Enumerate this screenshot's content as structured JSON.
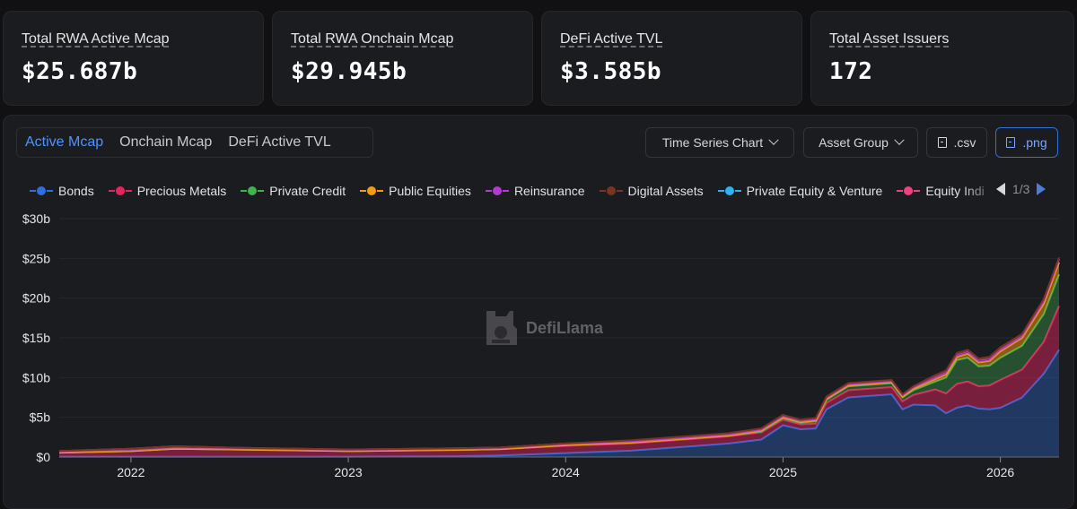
{
  "stats": [
    {
      "label": "Total RWA Active Mcap",
      "value": "$25.687b"
    },
    {
      "label": "Total RWA Onchain Mcap",
      "value": "$29.945b"
    },
    {
      "label": "DeFi Active TVL",
      "value": "$3.585b"
    },
    {
      "label": "Total Asset Issuers",
      "value": "172"
    }
  ],
  "tabs": [
    "Active Mcap",
    "Onchain Mcap",
    "DeFi Active TVL"
  ],
  "active_tab": "Active Mcap",
  "controls": {
    "chart_type": "Time Series Chart",
    "grouping": "Asset Group",
    "csv": ".csv",
    "png": ".png"
  },
  "legend": [
    {
      "name": "Bonds",
      "color": "#2f6fde"
    },
    {
      "name": "Precious Metals",
      "color": "#e8245f"
    },
    {
      "name": "Private Credit",
      "color": "#3fb34f"
    },
    {
      "name": "Public Equities",
      "color": "#f39c12"
    },
    {
      "name": "Reinsurance",
      "color": "#b23ccf"
    },
    {
      "name": "Digital Assets",
      "color": "#7a3520"
    },
    {
      "name": "Private Equity & Venture",
      "color": "#2fb2f0"
    },
    {
      "name": "Equity Indi",
      "color": "#f0407d"
    }
  ],
  "legend_pager": "1/3",
  "watermark": "DefiLlama",
  "chart_data": {
    "type": "area",
    "stacked": true,
    "ylim": [
      0,
      30
    ],
    "yticks": [
      "$0",
      "$5b",
      "$10b",
      "$15b",
      "$20b",
      "$25b",
      "$30b"
    ],
    "xticks": [
      "2022",
      "2023",
      "2024",
      "2025",
      "2026"
    ],
    "x": [
      2021.67,
      2022.0,
      2022.2,
      2022.5,
      2023.0,
      2023.5,
      2023.7,
      2024.0,
      2024.3,
      2024.5,
      2024.75,
      2024.9,
      2025.0,
      2025.08,
      2025.15,
      2025.2,
      2025.3,
      2025.5,
      2025.55,
      2025.6,
      2025.7,
      2025.75,
      2025.8,
      2025.85,
      2025.9,
      2025.95,
      2026.0,
      2026.1,
      2026.2,
      2026.27
    ],
    "series": [
      {
        "name": "Bonds",
        "values": [
          0.05,
          0.05,
          0.05,
          0.05,
          0.05,
          0.1,
          0.2,
          0.5,
          0.8,
          1.2,
          1.7,
          2.2,
          4.0,
          3.5,
          3.6,
          6.0,
          7.5,
          7.9,
          6.0,
          6.6,
          6.5,
          5.5,
          6.2,
          6.5,
          6.1,
          6.0,
          6.2,
          7.5,
          10.5,
          13.5
        ]
      },
      {
        "name": "Precious Metals",
        "values": [
          0.5,
          0.7,
          1.0,
          0.9,
          0.7,
          0.8,
          0.8,
          0.9,
          0.9,
          0.9,
          0.9,
          0.9,
          0.7,
          0.6,
          0.6,
          0.8,
          0.9,
          0.9,
          1.0,
          1.2,
          2.0,
          2.5,
          3.0,
          3.0,
          2.8,
          3.0,
          3.5,
          3.5,
          4.0,
          5.5
        ]
      },
      {
        "name": "Private Credit",
        "values": [
          0.0,
          0.0,
          0.0,
          0.0,
          0.0,
          0.0,
          0.0,
          0.1,
          0.1,
          0.1,
          0.1,
          0.1,
          0.2,
          0.2,
          0.3,
          0.4,
          0.5,
          0.5,
          0.5,
          0.6,
          1.0,
          2.0,
          3.0,
          3.0,
          2.5,
          2.5,
          2.8,
          3.0,
          3.5,
          4.0
        ]
      },
      {
        "name": "Public Equities",
        "values": [
          0.0,
          0.0,
          0.0,
          0.0,
          0.0,
          0.0,
          0.0,
          0.0,
          0.0,
          0.0,
          0.0,
          0.1,
          0.1,
          0.1,
          0.1,
          0.1,
          0.1,
          0.1,
          0.1,
          0.2,
          0.3,
          0.4,
          0.4,
          0.5,
          0.5,
          0.6,
          0.8,
          1.0,
          1.3,
          1.5
        ]
      },
      {
        "name": "Reinsurance",
        "values": [
          0.2,
          0.3,
          0.3,
          0.2,
          0.2,
          0.2,
          0.2,
          0.2,
          0.2,
          0.2,
          0.2,
          0.2,
          0.2,
          0.2,
          0.2,
          0.2,
          0.2,
          0.2,
          0.2,
          0.2,
          0.3,
          0.3,
          0.3,
          0.3,
          0.3,
          0.3,
          0.3,
          0.3,
          0.4,
          0.4
        ]
      },
      {
        "name": "Digital Assets",
        "values": [
          0.0,
          0.0,
          0.0,
          0.0,
          0.0,
          0.0,
          0.0,
          0.0,
          0.1,
          0.1,
          0.1,
          0.1,
          0.1,
          0.1,
          0.1,
          0.1,
          0.1,
          0.1,
          0.1,
          0.1,
          0.2,
          0.2,
          0.2,
          0.2,
          0.2,
          0.2,
          0.2,
          0.2,
          0.2,
          0.2
        ]
      }
    ]
  }
}
